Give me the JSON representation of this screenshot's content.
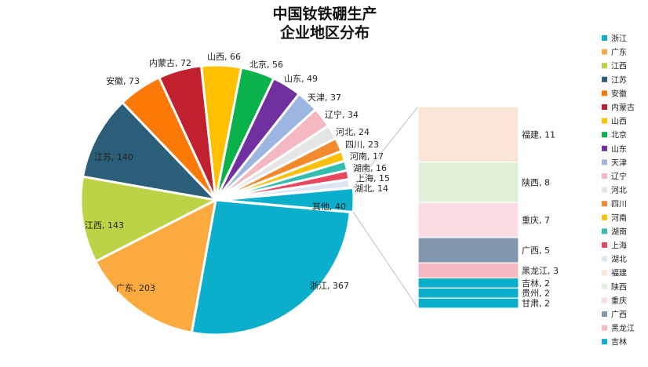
{
  "chart_data": {
    "type": "pie",
    "title": [
      "中国钕铁硼生产",
      "企业地区分布"
    ],
    "slices": [
      {
        "label": "浙江",
        "value": 367,
        "color": "#0BAFCB"
      },
      {
        "label": "广东",
        "value": 203,
        "color": "#FBAA3F"
      },
      {
        "label": "江西",
        "value": 143,
        "color": "#BDD245"
      },
      {
        "label": "江苏",
        "value": 140,
        "color": "#2B5F79"
      },
      {
        "label": "安徽",
        "value": 73,
        "color": "#FA7907"
      },
      {
        "label": "内蒙古",
        "value": 72,
        "color": "#C1212E"
      },
      {
        "label": "山西",
        "value": 66,
        "color": "#FFC000"
      },
      {
        "label": "北京",
        "value": 56,
        "color": "#09B24A"
      },
      {
        "label": "山东",
        "value": 49,
        "color": "#7030A0"
      },
      {
        "label": "天津",
        "value": 37,
        "color": "#9DB6E1"
      },
      {
        "label": "辽宁",
        "value": 34,
        "color": "#F4B8C2"
      },
      {
        "label": "河北",
        "value": 24,
        "color": "#E5E5E5"
      },
      {
        "label": "四川",
        "value": 23,
        "color": "#F2892D"
      },
      {
        "label": "河南",
        "value": 17,
        "color": "#F9C00B"
      },
      {
        "label": "湖南",
        "value": 16,
        "color": "#33BDB0"
      },
      {
        "label": "上海",
        "value": 15,
        "color": "#E8475F"
      },
      {
        "label": "湖北",
        "value": 14,
        "color": "#DDE5F5"
      },
      {
        "label": "其他",
        "value": 40,
        "color": "#0BAFCB"
      }
    ],
    "other_breakdown": [
      {
        "label": "福建",
        "value": 11,
        "color": "#FBE5D6"
      },
      {
        "label": "陕西",
        "value": 8,
        "color": "#E2F0D9"
      },
      {
        "label": "重庆",
        "value": 7,
        "color": "#F9DDE3"
      },
      {
        "label": "广西",
        "value": 5,
        "color": "#8497B0"
      },
      {
        "label": "黑龙江",
        "value": 3,
        "color": "#F4B8C2"
      },
      {
        "label": "吉林",
        "value": 2,
        "color": "#0BAFCB"
      },
      {
        "label": "贵州",
        "value": 2,
        "color": "#0BAFCB"
      },
      {
        "label": "甘肃",
        "value": 2,
        "color": "#0BAFCB"
      }
    ],
    "legend": [
      {
        "label": "浙江",
        "color": "#0BAFCB"
      },
      {
        "label": "广东",
        "color": "#FBAA3F"
      },
      {
        "label": "江西",
        "color": "#BDD245"
      },
      {
        "label": "江苏",
        "color": "#2B5F79"
      },
      {
        "label": "安徽",
        "color": "#FA7907"
      },
      {
        "label": "内蒙古",
        "color": "#C1212E"
      },
      {
        "label": "山西",
        "color": "#FFC000"
      },
      {
        "label": "北京",
        "color": "#09B24A"
      },
      {
        "label": "山东",
        "color": "#7030A0"
      },
      {
        "label": "天津",
        "color": "#9DB6E1"
      },
      {
        "label": "辽宁",
        "color": "#F4B8C2"
      },
      {
        "label": "河北",
        "color": "#E5E5E5"
      },
      {
        "label": "四川",
        "color": "#F2892D"
      },
      {
        "label": "河南",
        "color": "#F9C00B"
      },
      {
        "label": "湖南",
        "color": "#33BDB0"
      },
      {
        "label": "上海",
        "color": "#E8475F"
      },
      {
        "label": "湖北",
        "color": "#DDE5F5"
      },
      {
        "label": "福建",
        "color": "#FBE5D6"
      },
      {
        "label": "陕西",
        "color": "#E2F0D9"
      },
      {
        "label": "重庆",
        "color": "#F9DDE3"
      },
      {
        "label": "广西",
        "color": "#8497B0"
      },
      {
        "label": "黑龙江",
        "color": "#F4B8C2"
      },
      {
        "label": "吉林",
        "color": "#0BAFCB"
      }
    ],
    "legend_position": "right"
  }
}
